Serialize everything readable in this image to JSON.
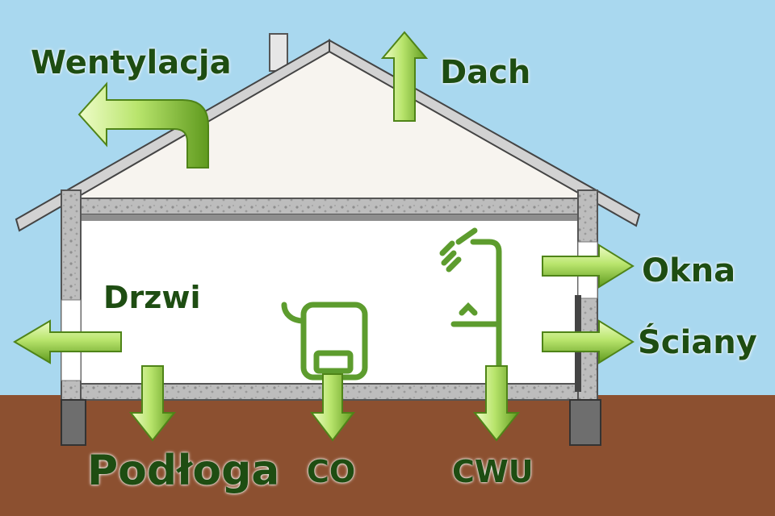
{
  "colors": {
    "sky": "#a9d8ef",
    "ground": "#8c5030",
    "arrow_light": "#cdf08a",
    "arrow_dark": "#5f9a1e",
    "label": "#1e4d12",
    "wall_insulation": "#b9b9b9",
    "device_stroke": "#5d9c2e"
  },
  "labels": {
    "ventilation": "Wentylacja",
    "roof": "Dach",
    "windows": "Okna",
    "walls": "Ściany",
    "door": "Drzwi",
    "floor": "Podłoga",
    "heating": "CO",
    "hot_water": "CWU"
  },
  "icons": {
    "boiler": "boiler-icon",
    "shower": "shower-icon",
    "vent_duct": "ventilation-duct-arrow"
  }
}
